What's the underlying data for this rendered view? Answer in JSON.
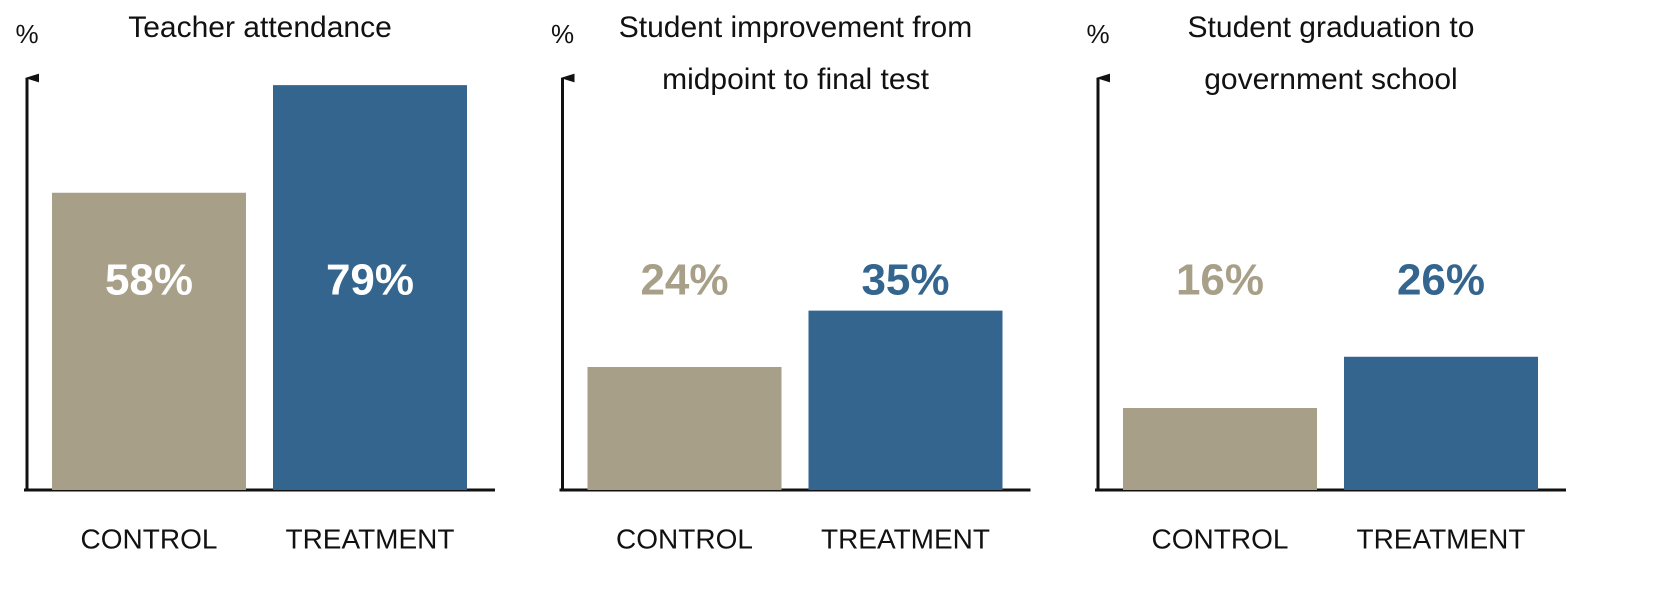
{
  "chart_data": [
    {
      "type": "bar",
      "title": "Teacher attendance",
      "ylabel": "%",
      "categories": [
        "CONTROL",
        "TREATMENT"
      ],
      "values": [
        58,
        79
      ],
      "value_labels": [
        "58%",
        "79%"
      ],
      "colors": [
        "#a89f88",
        "#33658f"
      ],
      "ylim": [
        0,
        80
      ]
    },
    {
      "type": "bar",
      "title": "Student improvement from midpoint to final test",
      "ylabel": "%",
      "categories": [
        "CONTROL",
        "TREATMENT"
      ],
      "values": [
        24,
        35
      ],
      "value_labels": [
        "24%",
        "35%"
      ],
      "colors": [
        "#a89f88",
        "#33658f"
      ],
      "ylim": [
        0,
        80
      ]
    },
    {
      "type": "bar",
      "title": "Student graduation to government school",
      "ylabel": "%",
      "categories": [
        "CONTROL",
        "TREATMENT"
      ],
      "values": [
        16,
        26
      ],
      "value_labels": [
        "16%",
        "26%"
      ],
      "colors": [
        "#a89f88",
        "#33658f"
      ],
      "ylim": [
        0,
        80
      ]
    }
  ]
}
